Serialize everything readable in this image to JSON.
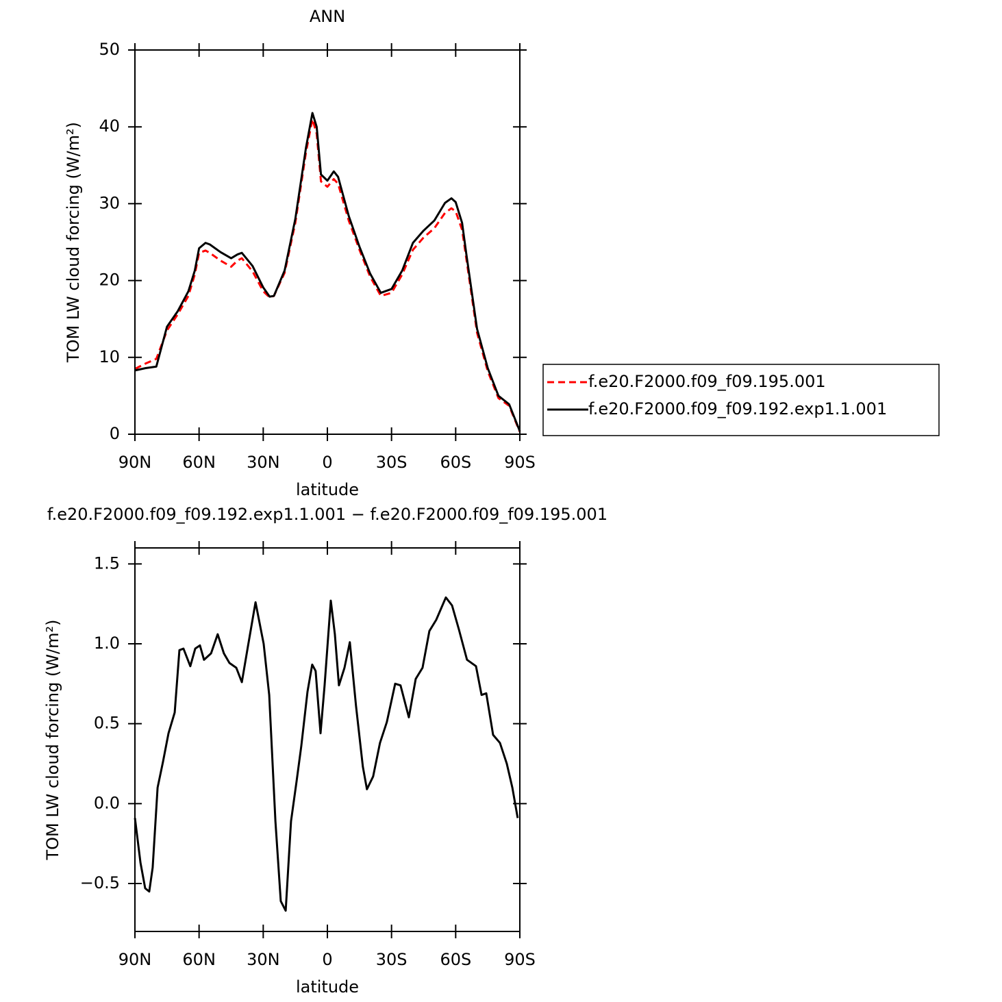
{
  "chart_data": [
    {
      "type": "line",
      "title": "ANN",
      "xlabel": "latitude",
      "ylabel": "TOM LW cloud forcing (W/m²)",
      "x": [
        90,
        85,
        80,
        75,
        70,
        65,
        62,
        60,
        57,
        55,
        50,
        45,
        42,
        40,
        35,
        30,
        27,
        25,
        20,
        15,
        10,
        7,
        5,
        3,
        0,
        -3,
        -5,
        -10,
        -15,
        -20,
        -25,
        -30,
        -35,
        -40,
        -45,
        -50,
        -55,
        -58,
        -60,
        -63,
        -65,
        -70,
        -75,
        -80,
        -85,
        -90
      ],
      "xlim": [
        90,
        -90
      ],
      "xticks": [
        {
          "value": 90,
          "label": "90N"
        },
        {
          "value": 60,
          "label": "60N"
        },
        {
          "value": 30,
          "label": "30N"
        },
        0,
        {
          "value": -30,
          "label": "30S"
        },
        {
          "value": -60,
          "label": "60S"
        },
        {
          "value": -90,
          "label": "90S"
        }
      ],
      "ylim": [
        0,
        50
      ],
      "yticks": [
        0,
        10,
        20,
        30,
        40,
        50
      ],
      "legend": "right",
      "series": [
        {
          "name": "f.e20.F2000.f09_f09.195.001",
          "color": "#ff0000",
          "line_style": "dashed",
          "values": [
            8.5,
            9.2,
            9.8,
            13.5,
            15.6,
            18.0,
            20.8,
            23.6,
            23.9,
            23.6,
            22.6,
            21.8,
            22.6,
            22.9,
            21.2,
            18.6,
            17.8,
            18.0,
            21.0,
            27.5,
            36.7,
            41.0,
            39.1,
            32.9,
            32.2,
            33.2,
            32.6,
            27.8,
            24.0,
            20.5,
            18.0,
            18.4,
            20.8,
            24.0,
            25.6,
            26.8,
            28.8,
            29.4,
            29.0,
            26.6,
            22.8,
            13.2,
            8.2,
            4.7,
            3.7,
            0.3
          ]
        },
        {
          "name": "f.e20.F2000.f09_f09.192.exp1.1.001",
          "color": "#000000",
          "line_style": "solid",
          "values": [
            8.3,
            8.6,
            8.8,
            14.0,
            16.0,
            18.6,
            21.3,
            24.2,
            24.9,
            24.7,
            23.7,
            22.9,
            23.4,
            23.6,
            21.9,
            19.1,
            17.9,
            18.0,
            21.3,
            28.0,
            37.3,
            41.8,
            40.0,
            33.8,
            33.0,
            34.2,
            33.5,
            28.4,
            24.4,
            20.9,
            18.4,
            18.9,
            21.3,
            24.9,
            26.5,
            27.8,
            30.1,
            30.7,
            30.2,
            27.5,
            23.4,
            13.7,
            8.6,
            5.0,
            3.9,
            0.4
          ]
        }
      ]
    },
    {
      "type": "line",
      "title": "f.e20.F2000.f09_f09.192.exp1.1.001 − f.e20.F2000.f09_f09.195.001",
      "xlabel": "latitude",
      "ylabel": "TOM LW cloud forcing (W/m²)",
      "x": [
        90,
        87.4,
        85.2,
        83.3,
        81.7,
        79.4,
        76.9,
        74.3,
        71.4,
        69.2,
        67.3,
        64.1,
        61.8,
        59.6,
        57.7,
        54.4,
        51.3,
        48.4,
        45.8,
        42.6,
        40.0,
        37.2,
        33.6,
        29.8,
        27.2,
        24.3,
        21.8,
        19.5,
        17.0,
        14.4,
        12.2,
        9.3,
        7.1,
        5.5,
        3.2,
        1.3,
        -1.6,
        -3.5,
        -5.4,
        -8.0,
        -10.5,
        -13.4,
        -16.6,
        -18.5,
        -21.4,
        -24.6,
        -27.8,
        -31.7,
        -34.2,
        -38.1,
        -41.3,
        -44.5,
        -47.7,
        -50.9,
        -55.4,
        -58.3,
        -61.5,
        -65.3,
        -69.5,
        -72.1,
        -74.3,
        -77.5,
        -80.7,
        -83.9,
        -86.5,
        -89.0
      ],
      "values": [
        -0.09,
        -0.37,
        -0.53,
        -0.55,
        -0.4,
        0.1,
        0.26,
        0.44,
        0.57,
        0.96,
        0.97,
        0.86,
        0.97,
        0.99,
        0.9,
        0.94,
        1.06,
        0.94,
        0.88,
        0.85,
        0.76,
        0.98,
        1.26,
        1.0,
        0.68,
        -0.11,
        -0.61,
        -0.67,
        -0.11,
        0.14,
        0.36,
        0.7,
        0.87,
        0.83,
        0.44,
        0.74,
        1.27,
        1.06,
        0.74,
        0.85,
        1.01,
        0.61,
        0.23,
        0.09,
        0.17,
        0.38,
        0.51,
        0.75,
        0.74,
        0.54,
        0.78,
        0.85,
        1.08,
        1.15,
        1.29,
        1.24,
        1.09,
        0.9,
        0.86,
        0.68,
        0.69,
        0.43,
        0.38,
        0.25,
        0.1,
        -0.09
      ],
      "color": "#000000",
      "xlim": [
        90,
        -90
      ],
      "xticks": [
        {
          "value": 90,
          "label": "90N"
        },
        {
          "value": 60,
          "label": "60N"
        },
        {
          "value": 30,
          "label": "30N"
        },
        0,
        {
          "value": -30,
          "label": "30S"
        },
        {
          "value": -60,
          "label": "60S"
        },
        {
          "value": -90,
          "label": "90S"
        }
      ],
      "ylim": [
        -0.8,
        1.6
      ],
      "yticks": [
        {
          "value": -0.5,
          "label": "−0.5"
        },
        {
          "value": 0,
          "label": "0.0"
        },
        0.5,
        {
          "value": 1,
          "label": "1.0"
        },
        1.5
      ]
    }
  ]
}
